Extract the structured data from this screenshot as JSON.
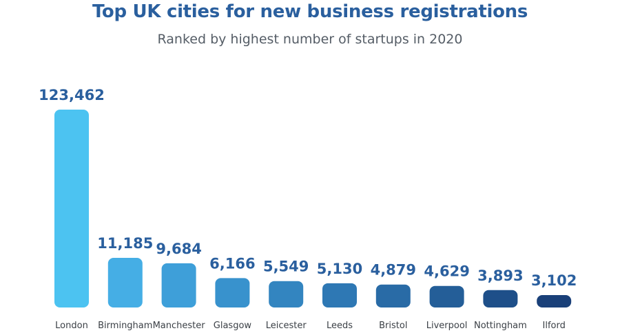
{
  "chart_data": {
    "type": "bar",
    "title": "Top UK cities for new business registrations",
    "subtitle": "Ranked by highest number of startups in 2020",
    "categories": [
      "London",
      "Birmingham",
      "Manchester",
      "Glasgow",
      "Leicester",
      "Leeds",
      "Bristol",
      "Liverpool",
      "Nottingham",
      "Ilford"
    ],
    "values": [
      123462,
      11185,
      9684,
      6166,
      5549,
      5130,
      4879,
      4629,
      3893,
      3102
    ],
    "value_labels": [
      "123,462",
      "11,185",
      "9,684",
      "6,166",
      "5,549",
      "5,130",
      "4,879",
      "4,629",
      "3,893",
      "3,102"
    ],
    "colors": [
      "#4cc3f1",
      "#45aee5",
      "#3e9fd9",
      "#3892cd",
      "#3385c0",
      "#2e78b4",
      "#296ba6",
      "#245e98",
      "#1e4f89",
      "#1a4079"
    ],
    "xlabel": "",
    "ylabel": ""
  }
}
